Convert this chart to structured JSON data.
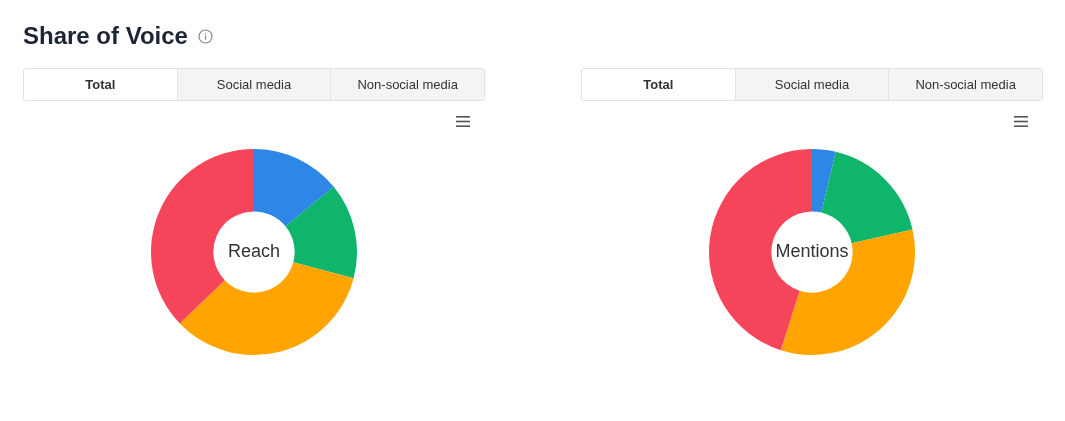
{
  "chart_data": [
    {
      "type": "donut",
      "title": "Reach",
      "categories": [
        null,
        null,
        null,
        null
      ],
      "values": [
        14.1,
        15.0,
        33.7,
        37.2
      ],
      "colors": [
        "#2e86e6",
        "#10b56c",
        "#ffa400",
        "#f5455a"
      ],
      "annotations": [
        "Share of Voice",
        "Total",
        "Social media",
        "Non-social media"
      ]
    },
    {
      "type": "donut",
      "title": "Mentions",
      "categories": [
        null,
        null,
        null,
        null
      ],
      "values": [
        3.7,
        17.8,
        33.4,
        45.1
      ],
      "colors": [
        "#2e86e6",
        "#10b56c",
        "#ffa400",
        "#f5455a"
      ],
      "annotations": [
        "Total",
        "Social media",
        "Non-social media"
      ]
    }
  ]
}
